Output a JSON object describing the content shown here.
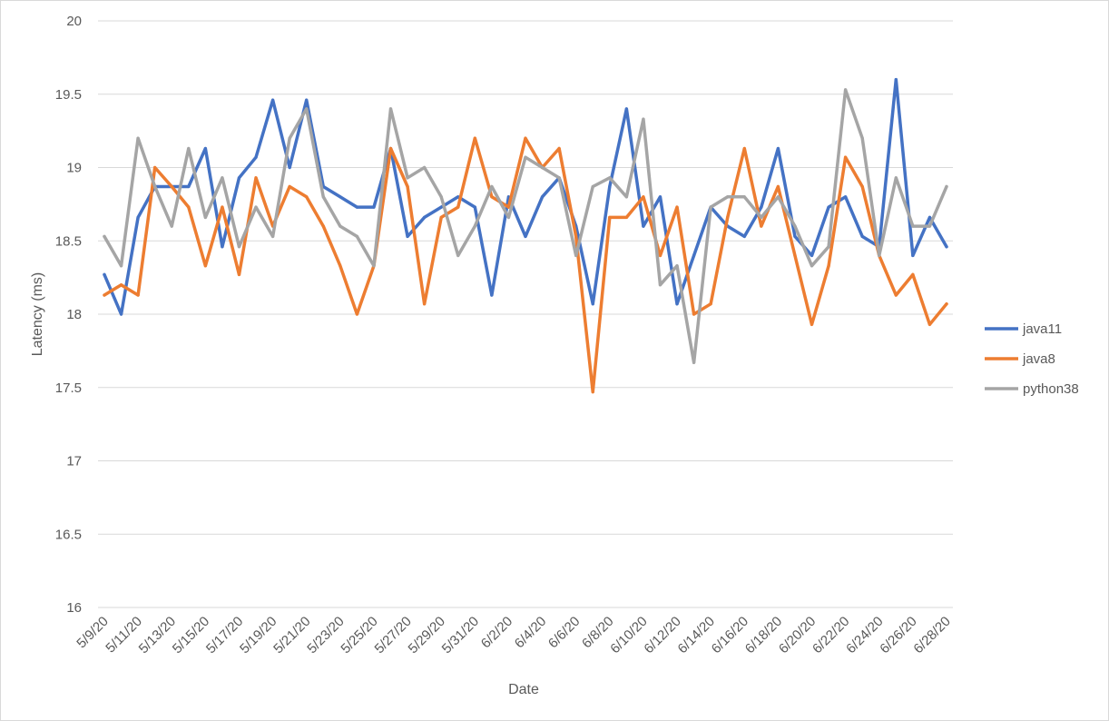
{
  "chart_data": {
    "type": "line",
    "title": "",
    "xlabel": "Date",
    "ylabel": "Latency (ms)",
    "ylim": [
      16,
      20
    ],
    "y_ticks": [
      "16",
      "16.5",
      "17",
      "17.5",
      "18",
      "18.5",
      "19",
      "19.5",
      "20"
    ],
    "grid": "horizontal",
    "legend_position": "right",
    "x": [
      "5/9/20",
      "5/10/20",
      "5/11/20",
      "5/12/20",
      "5/13/20",
      "5/14/20",
      "5/15/20",
      "5/16/20",
      "5/17/20",
      "5/18/20",
      "5/19/20",
      "5/20/20",
      "5/21/20",
      "5/22/20",
      "5/23/20",
      "5/24/20",
      "5/25/20",
      "5/26/20",
      "5/27/20",
      "5/28/20",
      "5/29/20",
      "5/30/20",
      "5/31/20",
      "6/1/20",
      "6/2/20",
      "6/3/20",
      "6/4/20",
      "6/5/20",
      "6/6/20",
      "6/7/20",
      "6/8/20",
      "6/9/20",
      "6/10/20",
      "6/11/20",
      "6/12/20",
      "6/13/20",
      "6/14/20",
      "6/15/20",
      "6/16/20",
      "6/17/20",
      "6/18/20",
      "6/19/20",
      "6/20/20",
      "6/21/20",
      "6/22/20",
      "6/23/20",
      "6/24/20",
      "6/25/20",
      "6/26/20",
      "6/27/20",
      "6/28/20"
    ],
    "x_tick_labels": [
      "5/9/20",
      "5/11/20",
      "5/13/20",
      "5/15/20",
      "5/17/20",
      "5/19/20",
      "5/21/20",
      "5/23/20",
      "5/25/20",
      "5/27/20",
      "5/29/20",
      "5/31/20",
      "6/2/20",
      "6/4/20",
      "6/6/20",
      "6/8/20",
      "6/10/20",
      "6/12/20",
      "6/14/20",
      "6/16/20",
      "6/18/20",
      "6/20/20",
      "6/22/20",
      "6/24/20",
      "6/26/20",
      "6/28/20"
    ],
    "series": [
      {
        "name": "java11",
        "color": "#4472c4",
        "values": [
          18.27,
          18.0,
          18.66,
          18.87,
          18.87,
          18.87,
          19.13,
          18.46,
          18.93,
          19.07,
          19.46,
          19.0,
          19.46,
          18.87,
          18.8,
          18.73,
          18.73,
          19.13,
          18.53,
          18.66,
          18.73,
          18.8,
          18.73,
          18.13,
          18.8,
          18.53,
          18.8,
          18.93,
          18.6,
          18.07,
          18.87,
          19.4,
          18.6,
          18.8,
          18.07,
          18.4,
          18.73,
          18.6,
          18.53,
          18.73,
          19.13,
          18.53,
          18.4,
          18.73,
          18.8,
          18.53,
          18.46,
          19.6,
          18.4,
          18.66,
          18.46
        ]
      },
      {
        "name": "java8",
        "color": "#ed7d31",
        "values": [
          18.13,
          18.2,
          18.13,
          19.0,
          18.87,
          18.73,
          18.33,
          18.73,
          18.27,
          18.93,
          18.6,
          18.87,
          18.8,
          18.6,
          18.33,
          18.0,
          18.33,
          19.13,
          18.87,
          18.07,
          18.66,
          18.73,
          19.2,
          18.8,
          18.73,
          19.2,
          19.0,
          19.13,
          18.53,
          17.47,
          18.66,
          18.66,
          18.8,
          18.4,
          18.73,
          18.0,
          18.07,
          18.66,
          19.13,
          18.6,
          18.87,
          18.4,
          17.93,
          18.33,
          19.07,
          18.87,
          18.4,
          18.13,
          18.27,
          17.93,
          18.07
        ]
      },
      {
        "name": "python38",
        "color": "#a5a5a5",
        "values": [
          18.53,
          18.33,
          19.2,
          18.87,
          18.6,
          19.13,
          18.66,
          18.93,
          18.46,
          18.73,
          18.53,
          19.2,
          19.4,
          18.8,
          18.6,
          18.53,
          18.33,
          19.4,
          18.93,
          19.0,
          18.8,
          18.4,
          18.6,
          18.87,
          18.66,
          19.07,
          19.0,
          18.93,
          18.4,
          18.87,
          18.93,
          18.8,
          19.33,
          18.2,
          18.33,
          17.67,
          18.73,
          18.8,
          18.8,
          18.66,
          18.8,
          18.6,
          18.33,
          18.46,
          19.53,
          19.2,
          18.4,
          18.93,
          18.6,
          18.6,
          18.87
        ]
      }
    ]
  }
}
